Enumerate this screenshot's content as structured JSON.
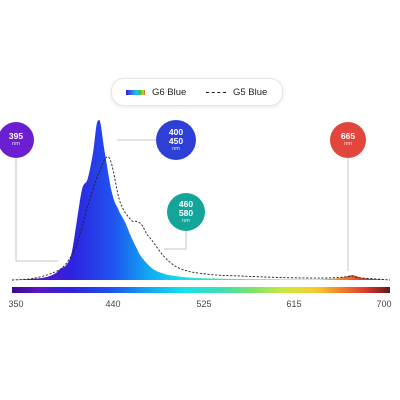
{
  "legend": {
    "series1": "G6 Blue",
    "series2": "G5 Blue"
  },
  "markers": [
    {
      "lines": [
        "395"
      ],
      "unit": "nm",
      "color": "#6b1fd1"
    },
    {
      "lines": [
        "400",
        "450"
      ],
      "unit": "nm",
      "color": "#2e3fd6"
    },
    {
      "lines": [
        "460",
        "580"
      ],
      "unit": "nm",
      "color": "#14a59a"
    },
    {
      "lines": [
        "665"
      ],
      "unit": "nm",
      "color": "#e2453b"
    }
  ],
  "colors": {
    "violet": "#5b10c8",
    "blue": "#2a2fe8",
    "cyan": "#10d8f0",
    "red": "#e2453b",
    "leader": "#b5b5b5"
  },
  "chart_data": {
    "type": "area",
    "xlim": [
      350,
      700
    ],
    "ylim": [
      0,
      1
    ],
    "x_ticks": [
      "350",
      "440",
      "525",
      "615",
      "700"
    ],
    "series": [
      {
        "name": "G6 Blue",
        "style": "filled spectral gradient",
        "x": [
          350,
          365,
          380,
          390,
          395,
          400,
          405,
          410,
          415,
          420,
          425,
          428,
          430,
          432,
          435,
          438,
          440,
          442,
          445,
          448,
          450,
          455,
          460,
          465,
          470,
          480,
          490,
          500,
          520,
          560,
          600,
          640,
          655,
          665,
          675,
          690,
          700
        ],
        "y": [
          0.0,
          0.005,
          0.015,
          0.04,
          0.07,
          0.09,
          0.16,
          0.36,
          0.56,
          0.62,
          0.78,
          0.94,
          0.98,
          0.96,
          0.82,
          0.7,
          0.62,
          0.55,
          0.48,
          0.44,
          0.41,
          0.35,
          0.27,
          0.2,
          0.14,
          0.07,
          0.04,
          0.025,
          0.012,
          0.006,
          0.005,
          0.005,
          0.015,
          0.03,
          0.012,
          0.003,
          0.0
        ]
      },
      {
        "name": "G5 Blue",
        "style": "dashed",
        "x": [
          350,
          370,
          390,
          400,
          410,
          420,
          430,
          440,
          450,
          460,
          465,
          470,
          475,
          480,
          490,
          500,
          510,
          520,
          540,
          560,
          600,
          640,
          660,
          665,
          670,
          690,
          700
        ],
        "y": [
          0.0,
          0.01,
          0.05,
          0.1,
          0.22,
          0.45,
          0.65,
          0.75,
          0.48,
          0.37,
          0.36,
          0.34,
          0.28,
          0.24,
          0.15,
          0.09,
          0.06,
          0.045,
          0.03,
          0.025,
          0.015,
          0.012,
          0.02,
          0.025,
          0.015,
          0.005,
          0.0
        ]
      }
    ]
  }
}
